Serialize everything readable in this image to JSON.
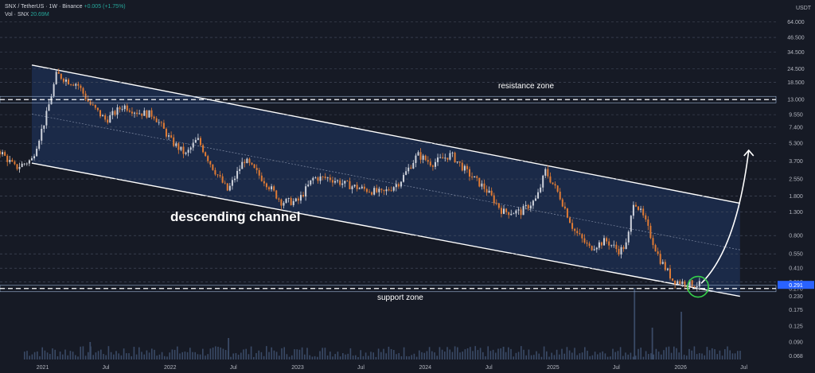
{
  "header": {
    "symbol_line": "SNX / TetherUS · 1W · Binance",
    "change": "+0.005 (+1.75%)",
    "vol_label": "Vol · SNX",
    "vol_value": "20.69M",
    "currency": "USDT"
  },
  "colors": {
    "background": "#161a25",
    "channel_fill": "#1c2c4d",
    "candle_up": "#cfd3dc",
    "candle_down": "#e07b34",
    "volume": "#3a4a66",
    "zone_line": "#9fb6d6",
    "highlight_circle": "#35d04a"
  },
  "chart_data": {
    "type": "candlestick",
    "y_scale": "log",
    "ylim": [
      0.06,
      70
    ],
    "y_ticks": [
      "64.000",
      "46.500",
      "34.500",
      "24.500",
      "18.500",
      "13.000",
      "9.550",
      "7.400",
      "5.300",
      "3.700",
      "2.550",
      "1.800",
      "1.300",
      "0.800",
      "0.550",
      "0.410",
      "0.310",
      "0.270",
      "0.230",
      "0.175",
      "0.125",
      "0.090",
      "0.068"
    ],
    "x_ticks": [
      "2021",
      "Jul",
      "2022",
      "Jul",
      "2023",
      "Jul",
      "2024",
      "Jul",
      "2025",
      "Jul",
      "2026",
      "Jul"
    ],
    "x_range": [
      "2020-09-01",
      "2026-10-01"
    ],
    "current_price_label": "0.291",
    "price_series": [
      {
        "date": "2020-09-01",
        "close": 4.5
      },
      {
        "date": "2020-10-15",
        "close": 3.2
      },
      {
        "date": "2020-12-01",
        "close": 3.8
      },
      {
        "date": "2021-01-10",
        "close": 9.0
      },
      {
        "date": "2021-02-10",
        "close": 22.0
      },
      {
        "date": "2021-03-15",
        "close": 19.0
      },
      {
        "date": "2021-04-10",
        "close": 18.0
      },
      {
        "date": "2021-05-15",
        "close": 12.0
      },
      {
        "date": "2021-07-01",
        "close": 8.5
      },
      {
        "date": "2021-08-20",
        "close": 11.5
      },
      {
        "date": "2021-10-01",
        "close": 10.0
      },
      {
        "date": "2021-11-15",
        "close": 9.5
      },
      {
        "date": "2022-01-05",
        "close": 5.5
      },
      {
        "date": "2022-02-15",
        "close": 4.2
      },
      {
        "date": "2022-03-20",
        "close": 5.8
      },
      {
        "date": "2022-05-01",
        "close": 3.3
      },
      {
        "date": "2022-06-15",
        "close": 2.0
      },
      {
        "date": "2022-08-01",
        "close": 3.8
      },
      {
        "date": "2022-10-01",
        "close": 2.4
      },
      {
        "date": "2022-11-15",
        "close": 1.6
      },
      {
        "date": "2023-01-01",
        "close": 1.6
      },
      {
        "date": "2023-02-15",
        "close": 2.6
      },
      {
        "date": "2023-04-01",
        "close": 2.6
      },
      {
        "date": "2023-05-15",
        "close": 2.3
      },
      {
        "date": "2023-07-01",
        "close": 2.1
      },
      {
        "date": "2023-09-01",
        "close": 1.9
      },
      {
        "date": "2023-10-20",
        "close": 2.4
      },
      {
        "date": "2023-12-10",
        "close": 4.2
      },
      {
        "date": "2024-01-20",
        "close": 3.5
      },
      {
        "date": "2024-03-15",
        "close": 4.2
      },
      {
        "date": "2024-05-01",
        "close": 2.9
      },
      {
        "date": "2024-06-20",
        "close": 2.1
      },
      {
        "date": "2024-08-10",
        "close": 1.3
      },
      {
        "date": "2024-10-01",
        "close": 1.3
      },
      {
        "date": "2024-11-15",
        "close": 1.7
      },
      {
        "date": "2024-12-10",
        "close": 3.0
      },
      {
        "date": "2025-01-20",
        "close": 1.8
      },
      {
        "date": "2025-03-01",
        "close": 0.9
      },
      {
        "date": "2025-04-15",
        "close": 0.62
      },
      {
        "date": "2025-06-01",
        "close": 0.72
      },
      {
        "date": "2025-07-10",
        "close": 0.58
      },
      {
        "date": "2025-08-01",
        "close": 0.68
      },
      {
        "date": "2025-08-20",
        "close": 1.7
      },
      {
        "date": "2025-09-20",
        "close": 1.1
      },
      {
        "date": "2025-11-01",
        "close": 0.5
      },
      {
        "date": "2025-12-10",
        "close": 0.32
      },
      {
        "date": "2026-01-15",
        "close": 0.3
      },
      {
        "date": "2026-03-01",
        "close": 0.29
      }
    ],
    "volume_series": [
      {
        "date": "2022-06-15",
        "value": 0.27
      },
      {
        "date": "2024-08-10",
        "value": 0.16
      },
      {
        "date": "2025-08-20",
        "value": 0.9
      },
      {
        "date": "2025-10-10",
        "value": 0.4
      },
      {
        "date": "2026-01-01",
        "value": 0.6
      },
      {
        "date": "2021-05-15",
        "value": 0.22
      }
    ],
    "channel": {
      "upper": [
        {
          "date": "2020-09-01",
          "value": 30
        },
        {
          "date": "2026-06-20",
          "value": 1.55
        }
      ],
      "lower": [
        {
          "date": "2020-09-01",
          "value": 4.0
        },
        {
          "date": "2026-06-20",
          "value": 0.23
        }
      ]
    },
    "zones": [
      {
        "label": "resistance zone",
        "price": 13.0
      },
      {
        "label": "support zone",
        "price": 0.27
      }
    ],
    "projection": [
      {
        "date": "2026-03-01",
        "value": 0.3
      },
      {
        "date": "2026-06-10",
        "value": 1.0
      },
      {
        "date": "2026-07-15",
        "value": 4.6
      }
    ],
    "annotations": [
      "descending channel",
      "resistance zone",
      "support zone"
    ]
  }
}
